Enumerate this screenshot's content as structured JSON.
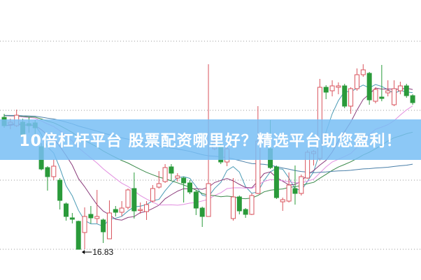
{
  "banner": {
    "text": "10倍杠杆平台 股票配资哪里好？精选平台助您盈利！"
  },
  "chart_data": {
    "type": "candlestick",
    "title": "",
    "xlabel": "",
    "ylabel": "",
    "ylim": [
      15.95,
      23.97
    ],
    "grid": true,
    "gridlines": [
      22.79,
      20.81,
      18.81,
      16.83
    ],
    "colors": {
      "up": "#d9535c",
      "down": "#2a9a3a",
      "ma5": "#4a9bb5",
      "ma10": "#8a3a7a",
      "ma20": "#e28fe0",
      "ma30": "#3a8a4a",
      "ma60": "#4a7fa8"
    },
    "moving_averages": [
      5,
      10,
      20,
      30,
      60
    ],
    "low_annotation": {
      "label": "16.83",
      "value": 16.83,
      "candle_index": 12
    },
    "ohlc": [
      [
        20.61,
        20.71,
        20.31,
        20.37
      ],
      [
        20.41,
        20.57,
        20.27,
        20.47
      ],
      [
        20.37,
        20.83,
        20.33,
        20.67
      ],
      [
        20.47,
        20.57,
        20.05,
        20.11
      ],
      [
        20.43,
        20.61,
        20.17,
        20.37
      ],
      [
        20.45,
        20.53,
        20.07,
        20.31
      ],
      [
        19.77,
        19.87,
        19.09,
        19.13
      ],
      [
        19.17,
        19.21,
        18.51,
        18.91
      ],
      [
        18.91,
        19.41,
        18.81,
        19.21
      ],
      [
        18.81,
        18.87,
        17.97,
        18.23
      ],
      [
        18.13,
        18.17,
        17.65,
        17.77
      ],
      [
        17.73,
        17.87,
        17.57,
        17.69
      ],
      [
        17.63,
        17.65,
        16.83,
        16.83
      ],
      [
        17.31,
        18.03,
        16.83,
        17.77
      ],
      [
        17.83,
        18.07,
        17.57,
        17.73
      ],
      [
        17.71,
        18.53,
        17.57,
        17.77
      ],
      [
        17.67,
        17.71,
        17.01,
        17.33
      ],
      [
        17.13,
        18.23,
        17.13,
        17.87
      ],
      [
        17.97,
        18.07,
        17.77,
        17.89
      ],
      [
        17.89,
        18.21,
        17.77,
        18.01
      ],
      [
        18.03,
        18.57,
        17.97,
        18.53
      ],
      [
        18.57,
        19.03,
        17.71,
        17.93
      ],
      [
        17.95,
        18.17,
        17.85,
        17.97
      ],
      [
        17.91,
        18.21,
        17.67,
        18.11
      ],
      [
        18.21,
        18.67,
        18.17,
        18.57
      ],
      [
        18.61,
        19.07,
        18.57,
        18.71
      ],
      [
        18.77,
        19.27,
        18.73,
        19.17
      ],
      [
        19.19,
        19.27,
        18.81,
        19.01
      ],
      [
        18.87,
        19.01,
        18.77,
        18.93
      ],
      [
        18.87,
        18.91,
        18.17,
        18.73
      ],
      [
        18.73,
        18.81,
        18.41,
        18.47
      ],
      [
        18.47,
        18.51,
        17.81,
        18.01
      ],
      [
        18.01,
        18.05,
        17.47,
        17.77
      ],
      [
        17.77,
        22.13,
        17.77,
        18.71
      ],
      [
        19.71,
        20.07,
        19.67,
        19.91
      ],
      [
        19.77,
        19.87,
        19.27,
        19.33
      ],
      [
        19.33,
        19.77,
        19.21,
        19.71
      ],
      [
        17.71,
        18.87,
        17.65,
        18.33
      ],
      [
        18.33,
        18.37,
        17.83,
        17.93
      ],
      [
        17.97,
        18.01,
        17.73,
        17.83
      ],
      [
        17.83,
        18.43,
        17.81,
        18.37
      ],
      [
        18.43,
        20.93,
        18.41,
        19.93
      ],
      [
        19.89,
        20.07,
        19.77,
        19.95
      ],
      [
        19.71,
        20.53,
        19.13,
        19.17
      ],
      [
        19.19,
        19.23,
        18.27,
        18.31
      ],
      [
        18.19,
        18.31,
        17.93,
        18.25
      ],
      [
        18.21,
        19.03,
        18.17,
        18.67
      ],
      [
        18.57,
        19.23,
        18.11,
        18.43
      ],
      [
        18.43,
        18.97,
        18.37,
        18.91
      ],
      [
        18.87,
        19.67,
        18.85,
        19.61
      ],
      [
        19.57,
        19.67,
        19.23,
        19.63
      ],
      [
        19.43,
        21.71,
        19.37,
        21.47
      ],
      [
        21.47,
        21.53,
        21.13,
        21.33
      ],
      [
        21.37,
        21.67,
        21.21,
        21.51
      ],
      [
        21.47,
        21.61,
        21.27,
        21.51
      ],
      [
        21.51,
        21.57,
        20.87,
        20.93
      ],
      [
        20.93,
        21.47,
        20.71,
        21.43
      ],
      [
        21.43,
        22.01,
        21.37,
        21.83
      ],
      [
        21.83,
        22.13,
        21.77,
        21.97
      ],
      [
        21.87,
        21.91,
        20.97,
        21.11
      ],
      [
        21.07,
        21.47,
        21.01,
        21.41
      ],
      [
        21.19,
        22.11,
        21.07,
        21.15
      ],
      [
        21.31,
        21.67,
        21.21,
        21.37
      ],
      [
        20.97,
        21.67,
        20.93,
        21.43
      ],
      [
        21.37,
        21.63,
        21.27,
        21.51
      ],
      [
        21.51,
        21.57,
        21.17,
        21.23
      ],
      [
        21.23,
        21.27,
        20.97,
        21.03
      ]
    ]
  }
}
